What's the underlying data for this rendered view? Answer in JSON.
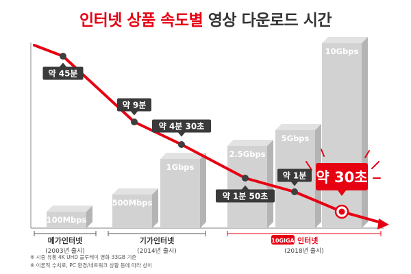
{
  "title": {
    "highlight": "인터넷 상품 속도별",
    "rest": " 영상 다운로드 시간"
  },
  "colors": {
    "accent": "#e60012",
    "bar_front": "#d2d2d2",
    "bar_top": "#e2e2e2",
    "bar_side": "#b4b4b4",
    "callout": "#3a3a3a",
    "text_dark": "#333333"
  },
  "chart_data": {
    "type": "bar",
    "categories": [
      "100Mbps",
      "500Mbps",
      "1Gbps",
      "2.5Gbps",
      "5Gbps",
      "10Gbps"
    ],
    "bar_values": [
      0.1,
      0.5,
      1,
      2.5,
      5,
      10
    ],
    "bar_unit": "Gbps",
    "download_time_labels": [
      "약 45분",
      "약 9분",
      "약 4분 30초",
      "약 1분 50초",
      "약 1분",
      "약 30초"
    ],
    "download_time_seconds": [
      2700,
      540,
      270,
      110,
      60,
      30
    ],
    "groups": [
      {
        "name": "메가인터넷",
        "year": "(2003년 출시)"
      },
      {
        "name": "기가인터넷",
        "year": "(2014년 출시)"
      },
      {
        "name": "인터넷",
        "year": "(2018년 출시)",
        "logo": "10GIGA"
      }
    ]
  },
  "notes": [
    "※ 시중 유통 4K UHD 블루레이 영화 33GB 기준",
    "※ 이론적 수치로, PC 환경/네트워크 상황 등에 따라 상이"
  ]
}
